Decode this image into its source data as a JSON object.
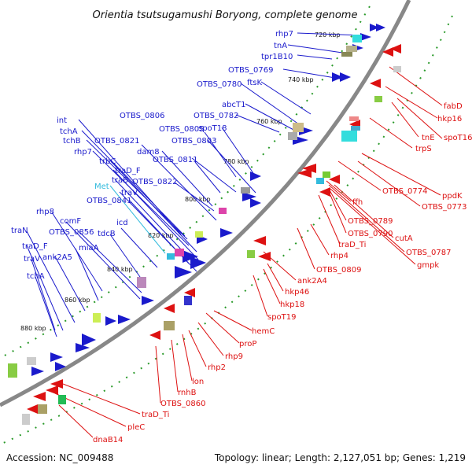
{
  "title": "Orientia tsutsugamushi Boryong, complete genome",
  "footer": {
    "accession": "Accession: NC_009488",
    "summary": "Topology: linear; Length: 2,127,051 bp; Genes: 1,219"
  },
  "colors": {
    "forward_gene": "#1a1acc",
    "reverse_gene": "#dd1111",
    "rna_gene": "#33bbdd",
    "backbone": "#888888",
    "tick_dots": "#2a9a2a"
  },
  "kbp_ticks": [
    "720 kbp",
    "740 kbp",
    "760 kbp",
    "780 kbp",
    "800 kbp",
    "820 kbp",
    "840 kbp",
    "860 kbp",
    "880 kbp"
  ],
  "blue_labels": [
    "rhp7",
    "tnA",
    "tpr1B10",
    "OTBS_0769",
    "ftsK",
    "OTBS_0780",
    "abcT1",
    "OTBS_0782",
    "OTBS_0806",
    "spoT18",
    "OTBS_0805",
    "OTBS_0803",
    "int",
    "tchA",
    "tchB",
    "OTBS_0821",
    "rhp7",
    "dam8",
    "trbC",
    "OTBS_0811",
    "traD_F",
    "traB",
    "OTBS_0822",
    "traV",
    "OTBS_0841",
    "rhp8",
    "comF",
    "OTBS_0856",
    "traN",
    "icd",
    "tdcB",
    "miaA",
    "traD_F",
    "ank2A5",
    "traV",
    "tchA"
  ],
  "cyan_labels": [
    "Met"
  ],
  "red_labels": [
    "fabD",
    "hkp16",
    "tnE",
    "spoT16",
    "trpS",
    "ppdK",
    "OTBS_0774",
    "OTBS_0773",
    "ffh",
    "OTBS_0789",
    "OTBS_0790",
    "cutA",
    "traD_Ti",
    "OTBS_0787",
    "gmpk",
    "rhp4",
    "OTBS_0809",
    "ank2A4",
    "hkp46",
    "hkp18",
    "spoT19",
    "hemC",
    "proP",
    "rhp9",
    "rhp2",
    "lon",
    "rnhB",
    "OTBS_0860",
    "traD_Ti",
    "pleC",
    "dnaB14"
  ]
}
